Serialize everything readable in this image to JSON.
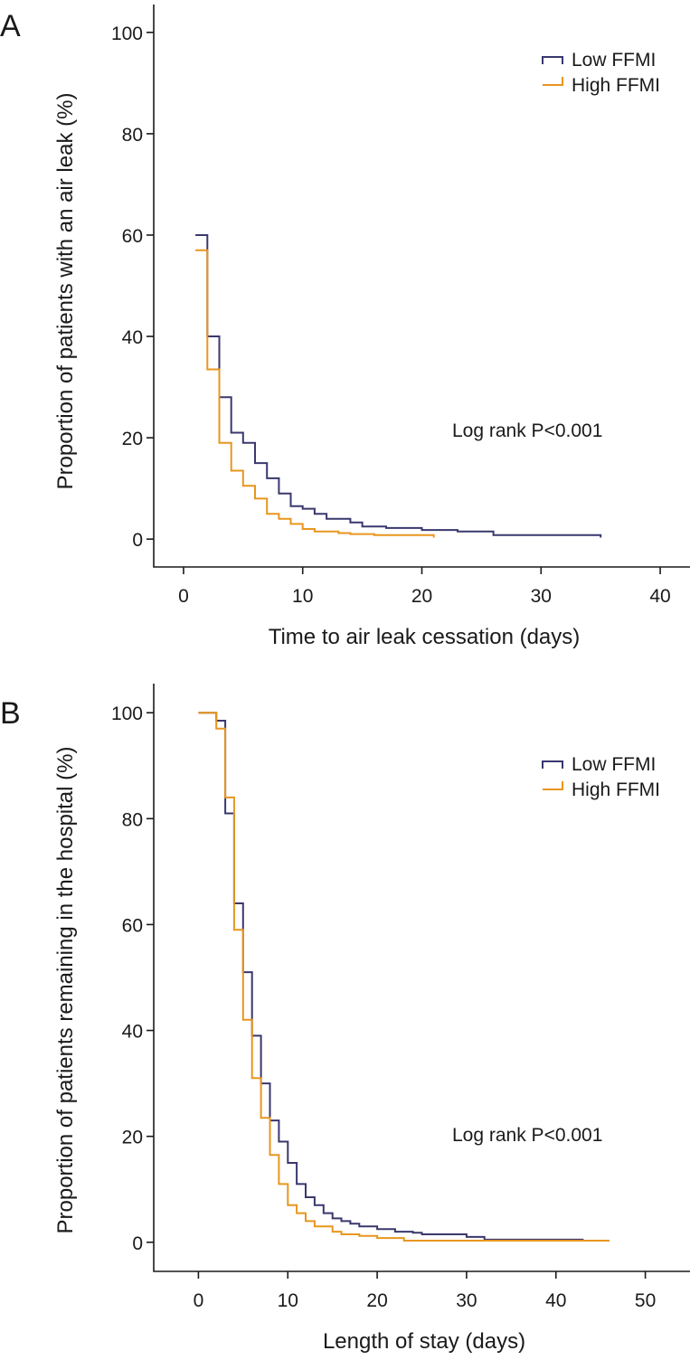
{
  "colors": {
    "low": "#39386e",
    "high": "#e8961e",
    "axis": "#1a1a1a"
  },
  "chart_data": [
    {
      "panel": "A",
      "type": "line",
      "step": true,
      "xlabel": "Time to air leak cessation (days)",
      "ylabel": "Proportion of patients with an air leak (%)",
      "xlim": [
        -2.5,
        42.5
      ],
      "ylim": [
        -5.5,
        105.5
      ],
      "xticks": [
        0,
        10,
        20,
        30,
        40
      ],
      "yticks": [
        0,
        20,
        40,
        60,
        80,
        100
      ],
      "legend_position": "top-right",
      "annotation": "Log rank P<0.001",
      "series": [
        {
          "name": "Low FFMI",
          "key": "low",
          "x": [
            1,
            2,
            3,
            4,
            5,
            6,
            7,
            8,
            9,
            10,
            11,
            12,
            14,
            15,
            17,
            20,
            23,
            26,
            35
          ],
          "y": [
            60,
            40,
            28,
            21,
            19,
            15,
            12,
            9,
            6.5,
            6,
            5,
            4,
            3.3,
            2.5,
            2.2,
            1.8,
            1.5,
            0.8,
            0.3
          ]
        },
        {
          "name": "High FFMI",
          "key": "high",
          "x": [
            1,
            2,
            3,
            4,
            5,
            6,
            7,
            8,
            9,
            10,
            11,
            13,
            14,
            16,
            21
          ],
          "y": [
            57,
            33.5,
            19,
            13.5,
            10.5,
            8,
            5,
            4,
            3,
            2,
            1.5,
            1.2,
            1,
            0.8,
            0.3
          ]
        }
      ]
    },
    {
      "panel": "B",
      "type": "line",
      "step": true,
      "xlabel": "Length of stay (days)",
      "ylabel": "Proportion of patients remaining in the hospital (%)",
      "xlim": [
        -5,
        55
      ],
      "ylim": [
        -5.5,
        105.5
      ],
      "xticks": [
        0,
        10,
        20,
        30,
        40,
        50
      ],
      "yticks": [
        0,
        20,
        40,
        60,
        80,
        100
      ],
      "legend_position": "top-right",
      "annotation": "Log rank P<0.001",
      "series": [
        {
          "name": "Low FFMI",
          "key": "low",
          "x": [
            0,
            2,
            3,
            4,
            5,
            6,
            7,
            8,
            9,
            10,
            11,
            12,
            13,
            14,
            15,
            16,
            17,
            18,
            20,
            22,
            24,
            25,
            30,
            32,
            43
          ],
          "y": [
            100,
            98.5,
            81,
            64,
            51,
            39,
            30,
            23,
            19,
            15,
            11,
            8.5,
            7,
            5.5,
            4.5,
            4,
            3.5,
            3,
            2.5,
            2,
            1.8,
            1.5,
            1,
            0.5,
            0.3
          ]
        },
        {
          "name": "High FFMI",
          "key": "high",
          "x": [
            0,
            2,
            3,
            4,
            5,
            6,
            7,
            8,
            9,
            10,
            11,
            12,
            13,
            15,
            16,
            18,
            20,
            23,
            46
          ],
          "y": [
            100,
            97,
            84,
            59,
            42,
            31,
            23.5,
            16.5,
            11,
            7,
            5.5,
            4,
            3,
            2,
            1.5,
            1.2,
            0.8,
            0.3,
            0.3
          ]
        }
      ]
    }
  ]
}
